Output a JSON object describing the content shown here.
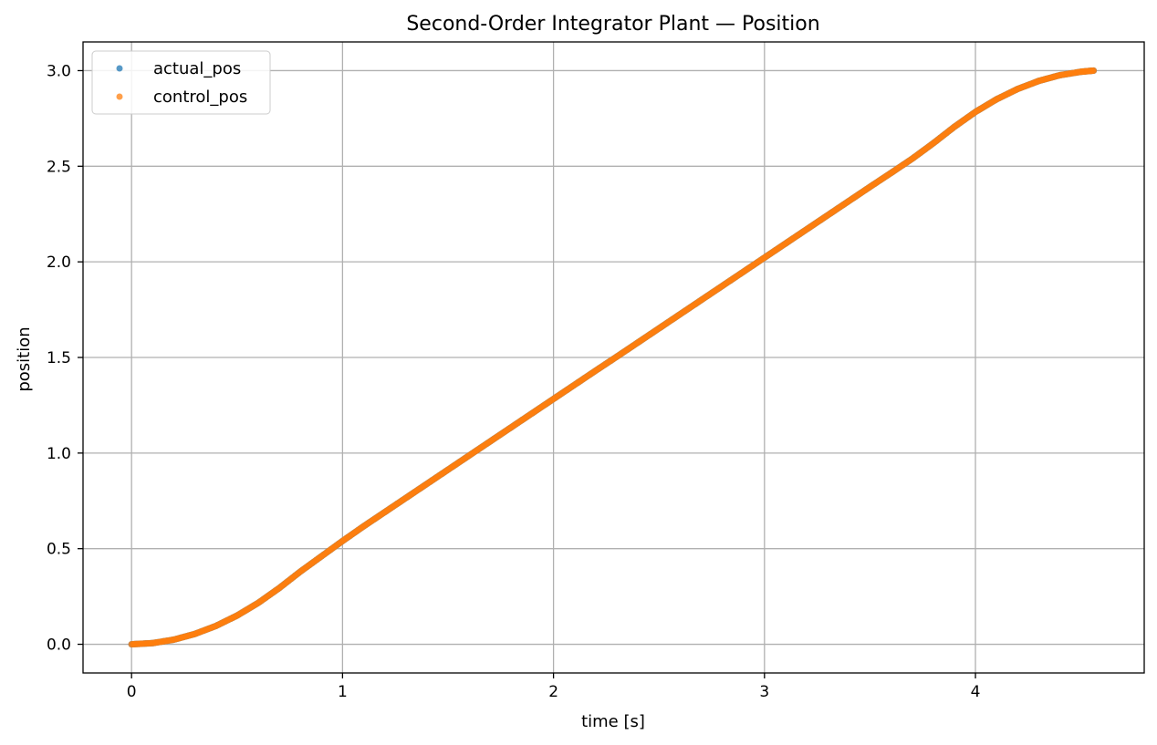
{
  "chart_data": {
    "type": "scatter",
    "title": "Second-Order Integrator Plant — Position",
    "xlabel": "time [s]",
    "ylabel": "position",
    "xlim": [
      -0.23,
      4.8
    ],
    "ylim": [
      -0.15,
      3.15
    ],
    "xticks": [
      0,
      1,
      2,
      3,
      4
    ],
    "yticks": [
      0.0,
      0.5,
      1.0,
      1.5,
      2.0,
      2.5,
      3.0
    ],
    "xtick_labels": [
      "0",
      "1",
      "2",
      "3",
      "4"
    ],
    "ytick_labels": [
      "0.0",
      "0.5",
      "1.0",
      "1.5",
      "2.0",
      "2.5",
      "3.0"
    ],
    "grid": true,
    "legend": "top-left",
    "series": [
      {
        "name": "actual_pos",
        "color": "#1f77b4",
        "x": [
          0.0,
          0.1,
          0.2,
          0.3,
          0.4,
          0.5,
          0.6,
          0.7,
          0.8,
          0.9,
          1.0,
          1.1,
          1.2,
          1.3,
          1.4,
          1.5,
          1.6,
          1.7,
          1.8,
          1.9,
          2.0,
          2.1,
          2.2,
          2.3,
          2.4,
          2.5,
          2.6,
          2.7,
          2.8,
          2.9,
          3.0,
          3.1,
          3.2,
          3.3,
          3.4,
          3.5,
          3.6,
          3.7,
          3.8,
          3.9,
          4.0,
          4.1,
          4.2,
          4.3,
          4.4,
          4.5,
          4.56
        ],
        "y": [
          0.0,
          0.006,
          0.024,
          0.054,
          0.096,
          0.15,
          0.216,
          0.294,
          0.38,
          0.46,
          0.54,
          0.617,
          0.691,
          0.765,
          0.839,
          0.913,
          0.987,
          1.061,
          1.135,
          1.209,
          1.283,
          1.357,
          1.431,
          1.504,
          1.578,
          1.652,
          1.726,
          1.8,
          1.874,
          1.948,
          2.022,
          2.096,
          2.17,
          2.244,
          2.318,
          2.392,
          2.465,
          2.539,
          2.62,
          2.706,
          2.784,
          2.85,
          2.904,
          2.946,
          2.976,
          2.994,
          3.0
        ]
      },
      {
        "name": "control_pos",
        "color": "#ff7f0e",
        "x": [
          0.0,
          0.1,
          0.2,
          0.3,
          0.4,
          0.5,
          0.6,
          0.7,
          0.8,
          0.9,
          1.0,
          1.1,
          1.2,
          1.3,
          1.4,
          1.5,
          1.6,
          1.7,
          1.8,
          1.9,
          2.0,
          2.1,
          2.2,
          2.3,
          2.4,
          2.5,
          2.6,
          2.7,
          2.8,
          2.9,
          3.0,
          3.1,
          3.2,
          3.3,
          3.4,
          3.5,
          3.6,
          3.7,
          3.8,
          3.9,
          4.0,
          4.1,
          4.2,
          4.3,
          4.4,
          4.5,
          4.56
        ],
        "y": [
          0.0,
          0.006,
          0.024,
          0.054,
          0.096,
          0.15,
          0.216,
          0.294,
          0.38,
          0.46,
          0.54,
          0.617,
          0.691,
          0.765,
          0.839,
          0.913,
          0.987,
          1.061,
          1.135,
          1.209,
          1.283,
          1.357,
          1.431,
          1.504,
          1.578,
          1.652,
          1.726,
          1.8,
          1.874,
          1.948,
          2.022,
          2.096,
          2.17,
          2.244,
          2.318,
          2.392,
          2.465,
          2.539,
          2.62,
          2.706,
          2.784,
          2.85,
          2.904,
          2.946,
          2.976,
          2.994,
          3.0
        ]
      }
    ]
  }
}
